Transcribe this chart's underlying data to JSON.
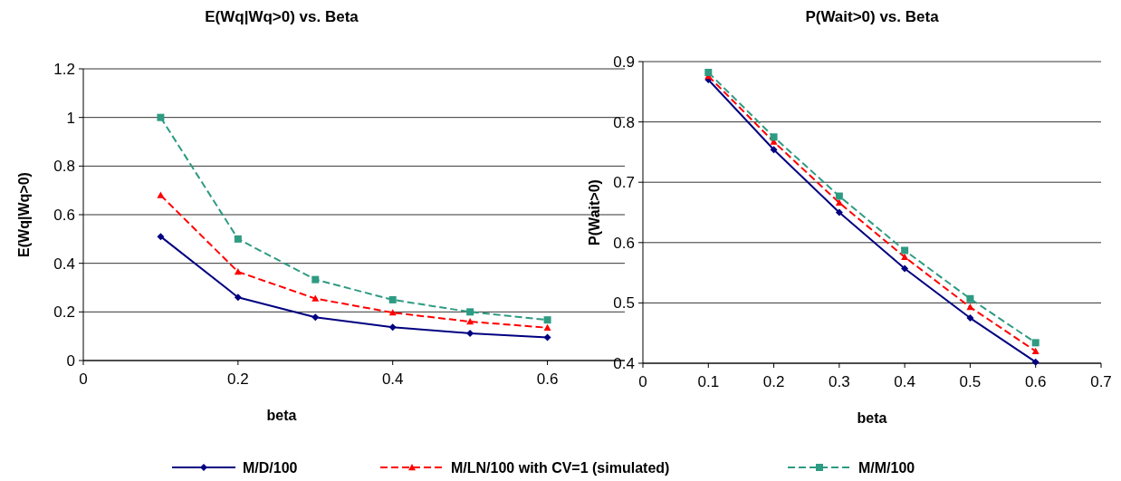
{
  "chart_data": [
    {
      "type": "line",
      "title": "E(Wq|Wq>0) vs. Beta",
      "xlabel": "beta",
      "ylabel": "E(Wq|Wq>0)",
      "x": [
        0.1,
        0.2,
        0.3,
        0.4,
        0.5,
        0.6
      ],
      "xlim": [
        0,
        0.7
      ],
      "xticks": [
        0,
        0.2,
        0.4,
        0.6
      ],
      "ylim": [
        0,
        1.2
      ],
      "yticks": [
        0,
        0.2,
        0.4,
        0.6,
        0.8,
        1,
        1.2
      ],
      "grid": "y",
      "legend": "bottom",
      "series": [
        {
          "name": "M/D/100",
          "color": "#000080",
          "marker": "diamond",
          "line_style": "solid",
          "values": [
            0.51,
            0.26,
            0.178,
            0.137,
            0.112,
            0.095
          ]
        },
        {
          "name": "M/LN/100 with CV=1 (simulated)",
          "color": "#ff0000",
          "marker": "triangle",
          "line_style": "dashed",
          "values": [
            0.68,
            0.365,
            0.255,
            0.197,
            0.16,
            0.135
          ]
        },
        {
          "name": "M/M/100",
          "color": "#2e9b83",
          "marker": "square",
          "line_style": "dashed",
          "values": [
            1.0,
            0.5,
            0.333,
            0.25,
            0.2,
            0.167
          ]
        }
      ]
    },
    {
      "type": "line",
      "title": "P(Wait>0) vs. Beta",
      "xlabel": "beta",
      "ylabel": "P(Wait>0)",
      "x": [
        0.1,
        0.2,
        0.3,
        0.4,
        0.5,
        0.6
      ],
      "xlim": [
        0,
        0.7
      ],
      "xticks": [
        0,
        0.1,
        0.2,
        0.3,
        0.4,
        0.5,
        0.6,
        0.7
      ],
      "ylim": [
        0.4,
        0.9
      ],
      "yticks": [
        0.4,
        0.5,
        0.6,
        0.7,
        0.8,
        0.9
      ],
      "grid": "y",
      "series": [
        {
          "color": "#000080",
          "marker": "diamond",
          "line_style": "solid",
          "values": [
            0.87,
            0.754,
            0.65,
            0.557,
            0.475,
            0.402
          ]
        },
        {
          "color": "#ff0000",
          "marker": "triangle",
          "line_style": "dashed",
          "values": [
            0.876,
            0.767,
            0.666,
            0.576,
            0.493,
            0.42
          ]
        },
        {
          "color": "#2e9b83",
          "marker": "square",
          "line_style": "dashed",
          "values": [
            0.882,
            0.775,
            0.677,
            0.587,
            0.507,
            0.434
          ]
        }
      ]
    }
  ]
}
